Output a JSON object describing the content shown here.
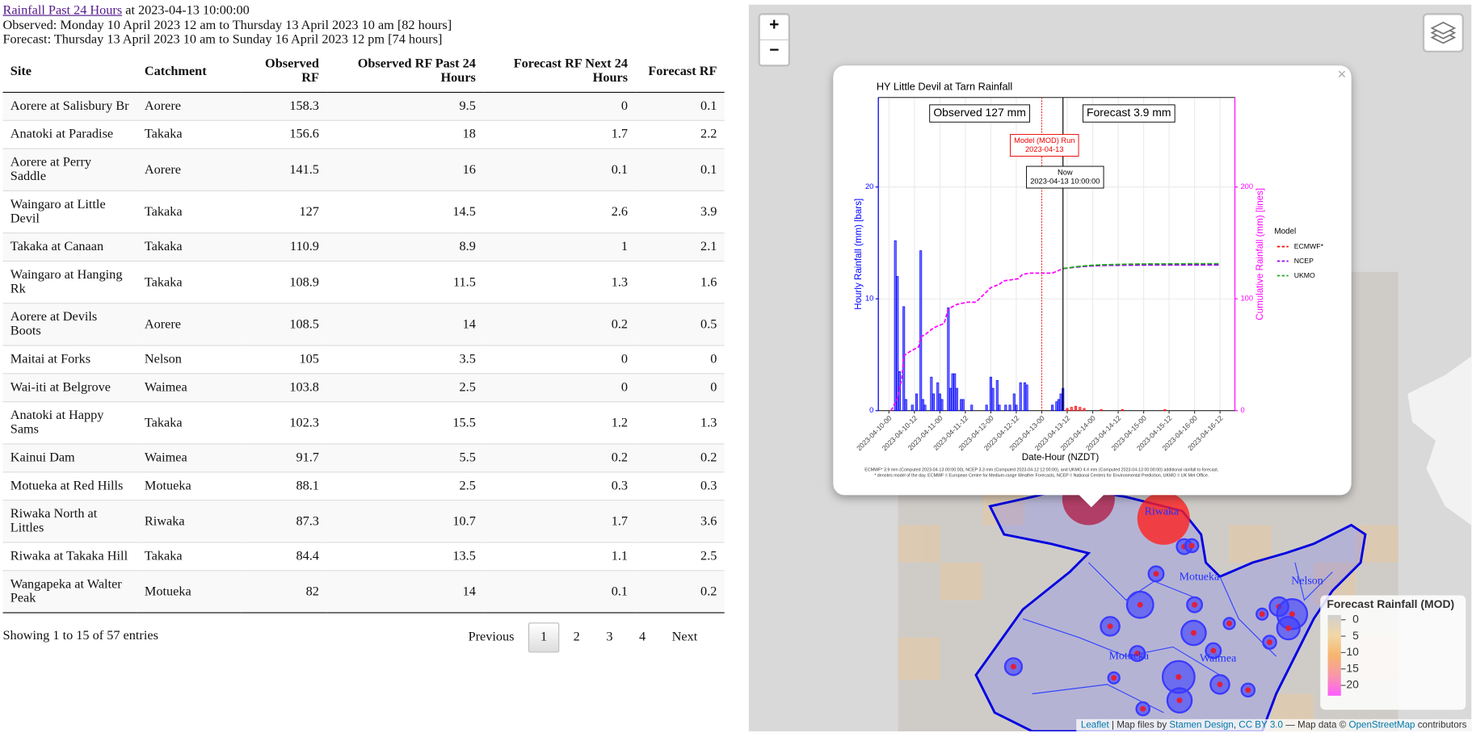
{
  "header": {
    "title_link": "Rainfall Past 24 Hours",
    "title_time": " at 2023-04-13 10:00:00",
    "observed": "Observed: Monday 10 April 2023 12 am to Thursday 13 April 2023 10 am [82 hours]",
    "forecast": "Forecast: Thursday 13 April 2023 10 am to Sunday 16 April 2023 12 pm [74 hours]"
  },
  "table": {
    "columns": [
      "Site",
      "Catchment",
      "Observed RF",
      "Observed RF Past 24 Hours",
      "Forecast RF Next 24 Hours",
      "Forecast RF"
    ],
    "rows": [
      [
        "Aorere at Salisbury Br",
        "Aorere",
        158.3,
        9.5,
        0,
        0.1
      ],
      [
        "Anatoki at Paradise",
        "Takaka",
        156.6,
        18,
        1.7,
        2.2
      ],
      [
        "Aorere at Perry Saddle",
        "Aorere",
        141.5,
        16,
        0.1,
        0.1
      ],
      [
        "Waingaro at Little Devil",
        "Takaka",
        127,
        14.5,
        2.6,
        3.9
      ],
      [
        "Takaka at Canaan",
        "Takaka",
        110.9,
        8.9,
        1,
        2.1
      ],
      [
        "Waingaro at Hanging Rk",
        "Takaka",
        108.9,
        11.5,
        1.3,
        1.6
      ],
      [
        "Aorere at Devils Boots",
        "Aorere",
        108.5,
        14,
        0.2,
        0.5
      ],
      [
        "Maitai at Forks",
        "Nelson",
        105,
        3.5,
        0,
        0
      ],
      [
        "Wai-iti at Belgrove",
        "Waimea",
        103.8,
        2.5,
        0,
        0
      ],
      [
        "Anatoki at Happy Sams",
        "Takaka",
        102.3,
        15.5,
        1.2,
        1.3
      ],
      [
        "Kainui Dam",
        "Waimea",
        91.7,
        5.5,
        0.2,
        0.2
      ],
      [
        "Motueka at Red Hills",
        "Motueka",
        88.1,
        2.5,
        0.3,
        0.3
      ],
      [
        "Riwaka North at Littles",
        "Riwaka",
        87.3,
        10.7,
        1.7,
        3.6
      ],
      [
        "Riwaka at Takaka Hill",
        "Takaka",
        84.4,
        13.5,
        1.1,
        2.5
      ],
      [
        "Wangapeka at Walter Peak",
        "Motueka",
        82,
        14,
        0.1,
        0.2
      ]
    ]
  },
  "footer": {
    "info": "Showing 1 to 15 of 57 entries",
    "pagination": [
      "Previous",
      "1",
      "2",
      "3",
      "4",
      "Next"
    ]
  },
  "map": {
    "zoom_in": "+",
    "zoom_out": "−",
    "close": "×",
    "labels": [
      "Riwaka",
      "Motueka",
      "Nelson",
      "Motueka",
      "Waimea"
    ],
    "legend": {
      "title": "Forecast Rainfall (MOD)",
      "ticks": [
        0,
        5,
        10,
        15,
        20
      ],
      "colors": [
        "#cfcfcf",
        "#f2d7a6",
        "#f6b66e",
        "#f897a8",
        "#ff5cff"
      ]
    },
    "attribution": [
      {
        "text": "Leaflet",
        "link": true
      },
      {
        "text": " | Map files by ",
        "link": false
      },
      {
        "text": "Stamen Design",
        "link": true
      },
      {
        "text": ", ",
        "link": false
      },
      {
        "text": "CC BY 3.0",
        "link": true
      },
      {
        "text": " — Map data © ",
        "link": false
      },
      {
        "text": "OpenStreetMap",
        "link": true
      },
      {
        "text": " contributors",
        "link": false
      }
    ]
  },
  "chart_data": {
    "type": "bar",
    "title": "HY Little Devil at Tarn Rainfall",
    "x_label": "Date-Hour (NZDT)",
    "y_label": "Hourly Rainfall (mm) [bars]",
    "y2_label": "Cumulative Rainfall (mm) [lines]",
    "xlim": [
      -5,
      163
    ],
    "ylim": [
      0,
      28
    ],
    "y2lim": [
      0,
      280
    ],
    "xticks": [
      {
        "value": 0,
        "label": "2023-04-10-00"
      },
      {
        "value": 12,
        "label": "2023-04-10-12"
      },
      {
        "value": 24,
        "label": "2023-04-11-00"
      },
      {
        "value": 36,
        "label": "2023-04-11-12"
      },
      {
        "value": 48,
        "label": "2023-04-12-00"
      },
      {
        "value": 60,
        "label": "2023-04-12-12"
      },
      {
        "value": 72,
        "label": "2023-04-13-00"
      },
      {
        "value": 84,
        "label": "2023-04-13-12"
      },
      {
        "value": 96,
        "label": "2023-04-14-00"
      },
      {
        "value": 108,
        "label": "2023-04-14-12"
      },
      {
        "value": 120,
        "label": "2023-04-15-00"
      },
      {
        "value": 132,
        "label": "2023-04-15-12"
      },
      {
        "value": 144,
        "label": "2023-04-16-00"
      },
      {
        "value": 156,
        "label": "2023-04-16-12"
      }
    ],
    "yticks": [
      0,
      10,
      20
    ],
    "y2ticks": [
      0,
      100,
      200
    ],
    "grid": true,
    "y_color": "#0000ff",
    "y2_color": "#ff00ff",
    "bars": {
      "color": "#0000ff",
      "x": [
        3,
        4,
        5,
        7,
        8,
        11,
        13,
        15,
        16,
        17,
        20,
        21,
        23,
        24,
        25,
        28,
        29,
        30,
        31,
        32,
        34,
        35,
        39,
        46,
        48,
        49,
        51,
        52,
        55,
        57,
        59,
        60,
        62,
        64,
        65,
        77,
        79,
        80,
        81,
        82
      ],
      "values": [
        15.2,
        12,
        3.5,
        9.3,
        1,
        0.5,
        1.5,
        14.3,
        1,
        0.5,
        3,
        1.5,
        2.5,
        1.5,
        1,
        9.2,
        2,
        3.3,
        3.3,
        2,
        1,
        1,
        0.5,
        0.5,
        3,
        2,
        2.7,
        0.5,
        0.5,
        0.5,
        1.5,
        0.5,
        2.5,
        2.5,
        2.3,
        0.5,
        0.8,
        1,
        1.5,
        2
      ]
    },
    "forecast_bars": {
      "color": "#ff0000",
      "x": [
        84,
        86,
        88,
        90,
        92,
        100,
        110,
        130
      ],
      "values": [
        0.2,
        0.3,
        0.4,
        0.3,
        0.2,
        0.1,
        0.1,
        0.1
      ]
    },
    "cumulative_observed": {
      "color": "#ff00ff",
      "axis": "y2",
      "x": [
        1,
        4,
        6,
        7,
        10,
        14,
        15,
        17,
        21,
        26,
        28,
        32,
        37,
        41,
        48,
        52,
        54,
        61,
        63,
        67,
        77,
        82
      ],
      "values": [
        0,
        11,
        28,
        49,
        53,
        57,
        66,
        68,
        74,
        78,
        91,
        95,
        97,
        97,
        110,
        113,
        116,
        118,
        122,
        123,
        123,
        127
      ]
    },
    "legend_title": "Model",
    "series": [
      {
        "name": "ECMWF*",
        "color": "#ff0000",
        "axis": "y2",
        "x": [
          82,
          88,
          94,
          100,
          110,
          120,
          130,
          140,
          150,
          156
        ],
        "values": [
          127,
          128.5,
          129.5,
          130,
          130.5,
          130.8,
          130.9,
          130.9,
          130.9,
          130.9
        ]
      },
      {
        "name": "NCEP",
        "color": "#9900ff",
        "axis": "y2",
        "x": [
          82,
          88,
          94,
          100,
          110,
          120,
          130,
          140,
          150,
          156
        ],
        "values": [
          127,
          128.3,
          129.2,
          129.8,
          130,
          130.2,
          130.3,
          130.3,
          130.3,
          130.3
        ]
      },
      {
        "name": "UKMO",
        "color": "#22aa22",
        "axis": "y2",
        "x": [
          82,
          88,
          94,
          100,
          110,
          120,
          130,
          140,
          150,
          156
        ],
        "values": [
          127,
          128.7,
          129.8,
          130.4,
          130.9,
          131.2,
          131.3,
          131.4,
          131.4,
          131.4
        ]
      }
    ],
    "model_run_x": 72,
    "now_x": 82,
    "observed_label": "Observed 127 mm",
    "forecast_label": "Forecast 3.9 mm",
    "model_run_label": [
      "Model (MOD) Run",
      "2023-04-13"
    ],
    "now_label": [
      "Now",
      "2023-04-13 10:00:00"
    ],
    "footnotes": [
      "ECMWF* 3.9 mm (Computed 2023-04-13 00:00:00), NCEP 3.3 mm (Computed 2023-04-12 12:00:00), and UKMO 4.4 mm (Computed 2023-04-13 00:00:00) additional rainfall to forecast.",
      "* denotes model of the day. ECMWF = European Centre for Medium-range Weather Forecasts, NCEP = National Centers for Environmental Prediction, UKMO = UK Met Office."
    ]
  }
}
